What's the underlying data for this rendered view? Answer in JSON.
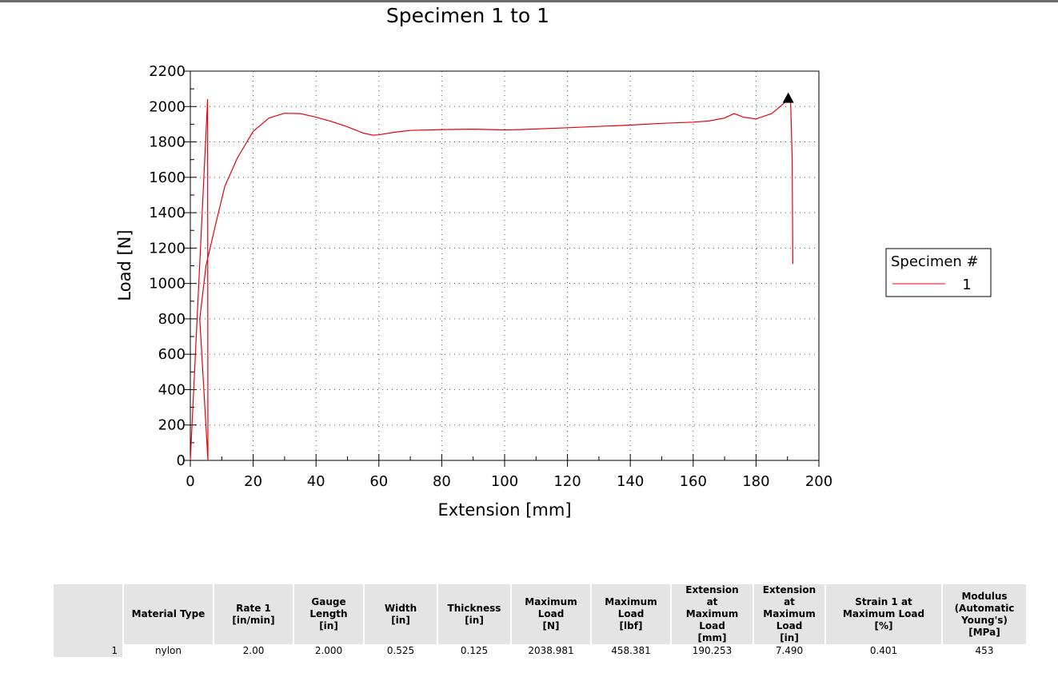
{
  "chart_data": {
    "type": "line",
    "title": "Specimen 1 to 1",
    "xlabel": "Extension [mm]",
    "ylabel": "Load [N]",
    "xlim": [
      0,
      200
    ],
    "ylim": [
      0,
      2200
    ],
    "x_ticks": [
      0,
      20,
      40,
      60,
      80,
      100,
      120,
      140,
      160,
      180,
      200
    ],
    "y_ticks": [
      0,
      200,
      400,
      600,
      800,
      1000,
      1200,
      1400,
      1600,
      1800,
      2000,
      2200
    ],
    "grid": true,
    "legend": {
      "title": "Specimen #",
      "position": "right"
    },
    "series": [
      {
        "name": "1",
        "color": "#e8000b",
        "x": [
          0,
          5.5,
          5.6,
          3,
          5,
          8,
          11,
          15,
          20,
          25,
          30,
          35,
          40,
          45,
          50,
          55,
          58,
          60,
          65,
          70,
          80,
          90,
          100,
          105,
          120,
          140,
          150,
          160,
          165,
          170,
          173,
          176,
          180,
          185,
          188,
          190.25,
          191,
          191.5,
          191.7
        ],
        "y": [
          0,
          2040,
          0,
          800,
          1100,
          1330,
          1550,
          1710,
          1860,
          1935,
          1962,
          1960,
          1940,
          1915,
          1885,
          1850,
          1838,
          1840,
          1855,
          1865,
          1870,
          1872,
          1868,
          1870,
          1880,
          1895,
          1905,
          1912,
          1918,
          1935,
          1960,
          1940,
          1930,
          1960,
          2005,
          2039,
          2035,
          1700,
          1110
        ]
      }
    ],
    "markers": [
      {
        "shape": "triangle",
        "x": 190.253,
        "y": 2038.981,
        "color": "#000000"
      }
    ]
  },
  "results_table": {
    "headers": [
      "",
      "Material Type",
      "Rate 1\n[in/min]",
      "Gauge\nLength\n[in]",
      "Width\n[in]",
      "Thickness\n[in]",
      "Maximum\nLoad\n[N]",
      "Maximum\nLoad\n[lbf]",
      "Extension\nat\nMaximum\nLoad\n[mm]",
      "Extension\nat\nMaximum\nLoad\n[in]",
      "Strain 1 at\nMaximum Load\n[%]",
      "Modulus\n(Automatic\nYoung's)\n[MPa]"
    ],
    "rows": [
      [
        "1",
        "nylon",
        "2.00",
        "2.000",
        "0.525",
        "0.125",
        "2038.981",
        "458.381",
        "190.253",
        "7.490",
        "0.401",
        "453"
      ]
    ]
  }
}
